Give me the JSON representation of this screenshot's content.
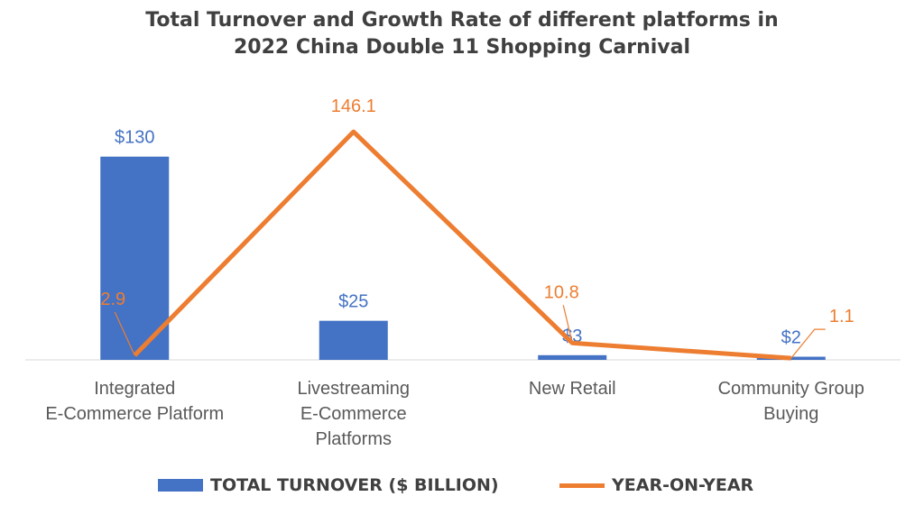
{
  "chart_data": {
    "type": "bar+line",
    "title_lines": [
      "Total Turnover and Growth Rate of different platforms in",
      "2022 China Double 11 Shopping Carnival"
    ],
    "categories": [
      [
        "Integrated",
        "E-Commerce Platform"
      ],
      [
        "Livestreaming",
        "E-Commerce",
        "Platforms"
      ],
      [
        "New Retail"
      ],
      [
        "Community Group",
        "Buying"
      ]
    ],
    "series": [
      {
        "name": "TOTAL TURNOVER ($ BILLION)",
        "type": "bar",
        "values": [
          130,
          25,
          3,
          2
        ],
        "labels": [
          "$130",
          "$25",
          "$3",
          "$2"
        ],
        "color": "#4472C4"
      },
      {
        "name": "YEAR-ON-YEAR",
        "type": "line",
        "values": [
          2.9,
          146.1,
          10.8,
          1.1
        ],
        "labels": [
          "2.9",
          "146.1",
          "10.8",
          "1.1"
        ],
        "color": "#ED7D31"
      }
    ],
    "legend_position": "bottom",
    "grid": false
  }
}
